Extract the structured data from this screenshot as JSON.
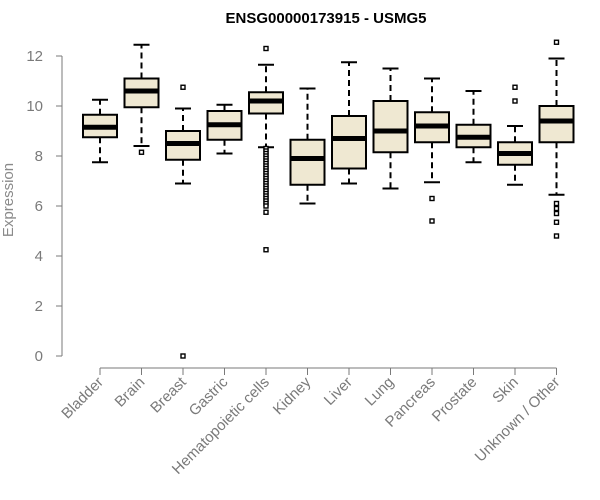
{
  "chart_data": {
    "type": "boxplot",
    "title": "ENSG00000173915 - USMG5",
    "xlabel": "",
    "ylabel": "Expression",
    "ylim": [
      0,
      12
    ],
    "yticks": [
      0,
      2,
      4,
      6,
      8,
      10,
      12
    ],
    "grid": false,
    "legend": "none",
    "colors": {
      "box_fill": "#efe8d2",
      "stroke": "#000000",
      "axis": "#7a7a7a"
    },
    "categories": [
      "Bladder",
      "Brain",
      "Breast",
      "Gastric",
      "Hematopoietic cells",
      "Kidney",
      "Liver",
      "Lung",
      "Pancreas",
      "Prostate",
      "Skin",
      "Unknown / Other"
    ],
    "boxes": [
      {
        "name": "Bladder",
        "whisker_low": 7.75,
        "q1": 8.75,
        "median": 9.15,
        "q3": 9.65,
        "whisker_high": 10.25,
        "outliers": []
      },
      {
        "name": "Brain",
        "whisker_low": 8.4,
        "q1": 9.95,
        "median": 10.6,
        "q3": 11.1,
        "whisker_high": 12.45,
        "outliers": [
          8.15
        ]
      },
      {
        "name": "Breast",
        "whisker_low": 6.9,
        "q1": 7.85,
        "median": 8.5,
        "q3": 9.0,
        "whisker_high": 9.9,
        "outliers": [
          10.75,
          0.0
        ]
      },
      {
        "name": "Gastric",
        "whisker_low": 8.1,
        "q1": 8.65,
        "median": 9.25,
        "q3": 9.8,
        "whisker_high": 10.05,
        "outliers": []
      },
      {
        "name": "Hematopoietic cells",
        "whisker_low": 8.35,
        "q1": 9.7,
        "median": 10.2,
        "q3": 10.55,
        "whisker_high": 11.65,
        "outliers": [
          12.3,
          8.3,
          8.2,
          8.1,
          8.0,
          7.9,
          7.8,
          7.7,
          7.6,
          7.5,
          7.4,
          7.3,
          7.2,
          7.1,
          7.0,
          6.9,
          6.8,
          6.7,
          6.6,
          6.5,
          6.4,
          6.3,
          6.2,
          6.1,
          6.0,
          5.75,
          4.25
        ]
      },
      {
        "name": "Kidney",
        "whisker_low": 6.1,
        "q1": 6.85,
        "median": 7.9,
        "q3": 8.65,
        "whisker_high": 10.7,
        "outliers": []
      },
      {
        "name": "Liver",
        "whisker_low": 6.9,
        "q1": 7.5,
        "median": 8.7,
        "q3": 9.6,
        "whisker_high": 11.75,
        "outliers": []
      },
      {
        "name": "Lung",
        "whisker_low": 6.7,
        "q1": 8.15,
        "median": 9.0,
        "q3": 10.2,
        "whisker_high": 11.5,
        "outliers": []
      },
      {
        "name": "Pancreas",
        "whisker_low": 6.95,
        "q1": 8.55,
        "median": 9.2,
        "q3": 9.75,
        "whisker_high": 11.1,
        "outliers": [
          6.3,
          5.4
        ]
      },
      {
        "name": "Prostate",
        "whisker_low": 7.75,
        "q1": 8.35,
        "median": 8.75,
        "q3": 9.25,
        "whisker_high": 10.6,
        "outliers": []
      },
      {
        "name": "Skin",
        "whisker_low": 6.85,
        "q1": 7.65,
        "median": 8.1,
        "q3": 8.55,
        "whisker_high": 9.2,
        "outliers": [
          10.75,
          10.2
        ]
      },
      {
        "name": "Unknown / Other",
        "whisker_low": 6.45,
        "q1": 8.55,
        "median": 9.4,
        "q3": 10.0,
        "whisker_high": 11.9,
        "outliers": [
          12.55,
          6.1,
          5.9,
          5.7,
          5.35,
          4.8
        ]
      }
    ]
  }
}
